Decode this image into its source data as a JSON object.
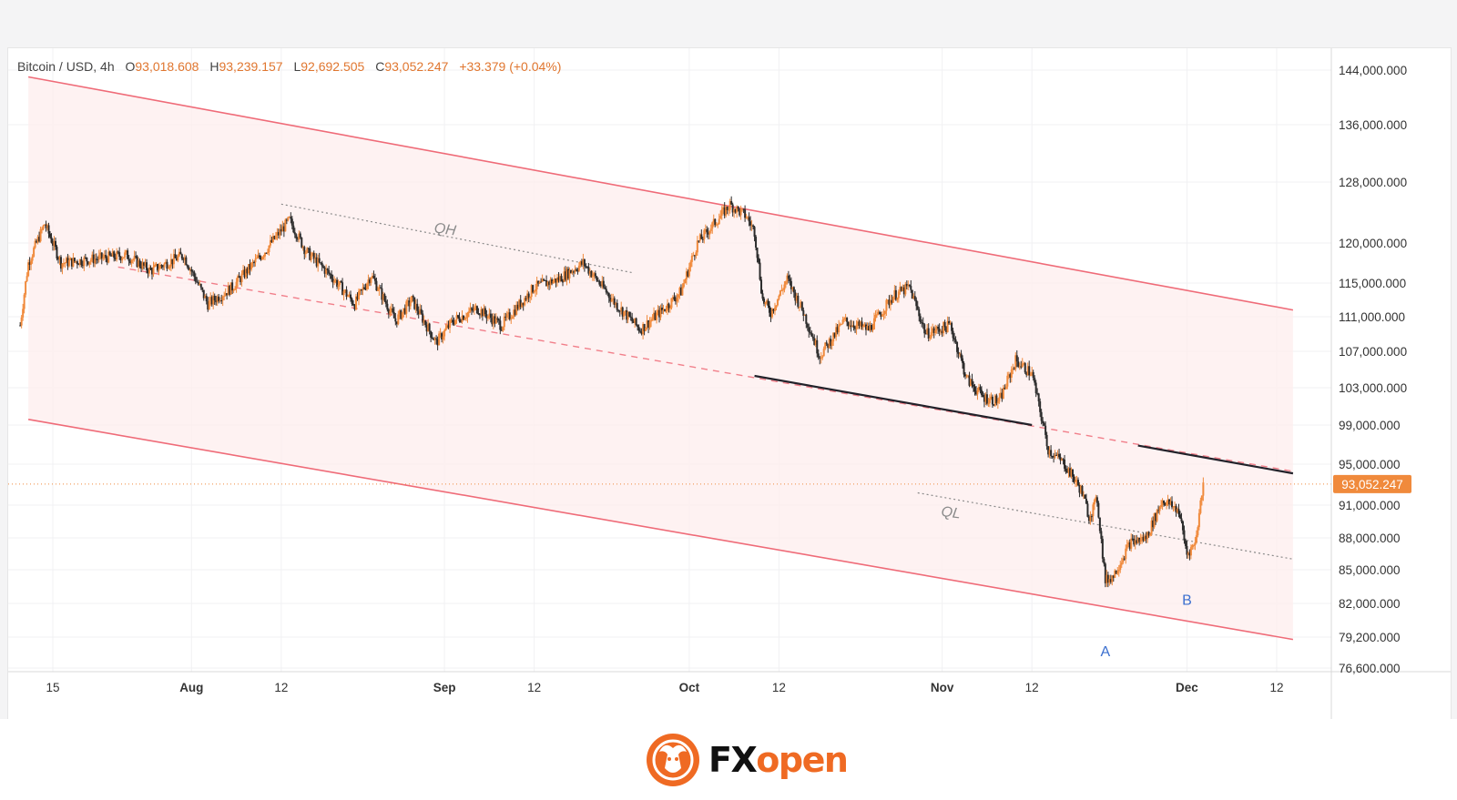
{
  "header": {
    "symbol": "Bitcoin / USD, 4h",
    "open_label": "O",
    "open": "93,018.608",
    "high_label": "H",
    "high": "93,239.157",
    "low_label": "L",
    "low": "92,692.505",
    "close_label": "C",
    "close": "93,052.247",
    "change": "+33.379 (+0.04%)"
  },
  "brand": {
    "fx": "FX",
    "open": "open"
  },
  "colors": {
    "channel_line": "#ef6b78",
    "channel_fill": "#fdeeee",
    "candle_up": "#f08a3c",
    "candle_down": "#2b2b2b",
    "annotation_blue": "#3b6fcf",
    "price_tag": "#f08a3c"
  },
  "chart_data": {
    "type": "candlestick",
    "symbol": "Bitcoin / USD",
    "interval": "4h",
    "current_price": 93052.247,
    "current_price_label": "93,052.247",
    "y_ticks": [
      144000,
      136000,
      128000,
      120000,
      115000,
      111000,
      107000,
      103000,
      99000,
      95000,
      91000,
      88000,
      85000,
      82000,
      79200,
      76600
    ],
    "y_tick_labels": [
      "144,000.000",
      "136,000.000",
      "128,000.000",
      "120,000.000",
      "115,000.000",
      "111,000.000",
      "107,000.000",
      "103,000.000",
      "99,000.000",
      "95,000.000",
      "91,000.000",
      "88,000.000",
      "85,000.000",
      "82,000.000",
      "79,200.000",
      "76,600.000"
    ],
    "x_ticks": [
      {
        "label": "15",
        "date": "2025-07-15"
      },
      {
        "label": "Aug",
        "date": "2025-08-01"
      },
      {
        "label": "12",
        "date": "2025-08-12"
      },
      {
        "label": "Sep",
        "date": "2025-09-01"
      },
      {
        "label": "12",
        "date": "2025-09-12"
      },
      {
        "label": "Oct",
        "date": "2025-10-01"
      },
      {
        "label": "12",
        "date": "2025-10-12"
      },
      {
        "label": "Nov",
        "date": "2025-11-01"
      },
      {
        "label": "12",
        "date": "2025-11-12"
      },
      {
        "label": "Dec",
        "date": "2025-12-01"
      },
      {
        "label": "12",
        "date": "2025-12-12"
      }
    ],
    "price_path": [
      {
        "date": "2025-07-11",
        "price": 110000
      },
      {
        "date": "2025-07-12",
        "price": 117500
      },
      {
        "date": "2025-07-14",
        "price": 122500
      },
      {
        "date": "2025-07-16",
        "price": 117500
      },
      {
        "date": "2025-07-20",
        "price": 118000
      },
      {
        "date": "2025-07-24",
        "price": 118500
      },
      {
        "date": "2025-07-27",
        "price": 116500
      },
      {
        "date": "2025-07-31",
        "price": 118500
      },
      {
        "date": "2025-08-03",
        "price": 112500
      },
      {
        "date": "2025-08-06",
        "price": 114500
      },
      {
        "date": "2025-08-10",
        "price": 119000
      },
      {
        "date": "2025-08-13",
        "price": 123000
      },
      {
        "date": "2025-08-15",
        "price": 119000
      },
      {
        "date": "2025-08-18",
        "price": 116000
      },
      {
        "date": "2025-08-21",
        "price": 112500
      },
      {
        "date": "2025-08-23",
        "price": 116000
      },
      {
        "date": "2025-08-26",
        "price": 110500
      },
      {
        "date": "2025-08-28",
        "price": 113000
      },
      {
        "date": "2025-08-31",
        "price": 108000
      },
      {
        "date": "2025-09-02",
        "price": 110500
      },
      {
        "date": "2025-09-05",
        "price": 112000
      },
      {
        "date": "2025-09-08",
        "price": 110000
      },
      {
        "date": "2025-09-12",
        "price": 114500
      },
      {
        "date": "2025-09-15",
        "price": 115500
      },
      {
        "date": "2025-09-18",
        "price": 117500
      },
      {
        "date": "2025-09-22",
        "price": 112500
      },
      {
        "date": "2025-09-25",
        "price": 109500
      },
      {
        "date": "2025-09-28",
        "price": 112000
      },
      {
        "date": "2025-09-30",
        "price": 114000
      },
      {
        "date": "2025-10-02",
        "price": 120000
      },
      {
        "date": "2025-10-06",
        "price": 125000
      },
      {
        "date": "2025-10-08",
        "price": 123500
      },
      {
        "date": "2025-10-09",
        "price": 121500
      },
      {
        "date": "2025-10-10",
        "price": 113000
      },
      {
        "date": "2025-10-11",
        "price": 111500
      },
      {
        "date": "2025-10-13",
        "price": 115500
      },
      {
        "date": "2025-10-15",
        "price": 111500
      },
      {
        "date": "2025-10-17",
        "price": 106500
      },
      {
        "date": "2025-10-20",
        "price": 110500
      },
      {
        "date": "2025-10-23",
        "price": 109500
      },
      {
        "date": "2025-10-26",
        "price": 113500
      },
      {
        "date": "2025-10-28",
        "price": 114500
      },
      {
        "date": "2025-10-30",
        "price": 109000
      },
      {
        "date": "2025-11-02",
        "price": 110000
      },
      {
        "date": "2025-11-04",
        "price": 104000
      },
      {
        "date": "2025-11-06",
        "price": 102000
      },
      {
        "date": "2025-11-08",
        "price": 101500
      },
      {
        "date": "2025-11-10",
        "price": 106000
      },
      {
        "date": "2025-11-12",
        "price": 104500
      },
      {
        "date": "2025-11-14",
        "price": 96500
      },
      {
        "date": "2025-11-16",
        "price": 95000
      },
      {
        "date": "2025-11-18",
        "price": 92500
      },
      {
        "date": "2025-11-19",
        "price": 90000
      },
      {
        "date": "2025-11-20",
        "price": 91500
      },
      {
        "date": "2025-11-21",
        "price": 84000
      },
      {
        "date": "2025-11-22",
        "price": 84500
      },
      {
        "date": "2025-11-24",
        "price": 87500
      },
      {
        "date": "2025-11-26",
        "price": 88000
      },
      {
        "date": "2025-11-28",
        "price": 91500
      },
      {
        "date": "2025-11-30",
        "price": 90500
      },
      {
        "date": "2025-12-01",
        "price": 86500
      },
      {
        "date": "2025-12-02",
        "price": 87500
      },
      {
        "date": "2025-12-03",
        "price": 93052
      }
    ],
    "channel": {
      "upper": [
        {
          "date": "2025-07-12",
          "price": 143000
        },
        {
          "date": "2025-12-14",
          "price": 111800
        }
      ],
      "lower": [
        {
          "date": "2025-07-12",
          "price": 99600
        },
        {
          "date": "2025-12-14",
          "price": 79000
        }
      ],
      "median": [
        {
          "date": "2025-07-23",
          "price": 117000
        },
        {
          "date": "2025-12-14",
          "price": 94300
        }
      ]
    },
    "lines": [
      {
        "name": "QH",
        "style": "dotted",
        "from": {
          "date": "2025-08-12",
          "price": 125100
        },
        "to": {
          "date": "2025-09-24",
          "price": 116300
        }
      },
      {
        "name": "QL",
        "style": "dotted",
        "from": {
          "date": "2025-10-29",
          "price": 92200
        },
        "to": {
          "date": "2025-12-14",
          "price": 86000
        }
      },
      {
        "name": "",
        "style": "solid",
        "from": {
          "date": "2025-10-09",
          "price": 104300
        },
        "to": {
          "date": "2025-11-12",
          "price": 99000
        }
      },
      {
        "name": "",
        "style": "solid",
        "from": {
          "date": "2025-11-25",
          "price": 96900
        },
        "to": {
          "date": "2025-12-14",
          "price": 94100
        }
      }
    ],
    "annotations": [
      {
        "text": "QH",
        "date": "2025-09-01",
        "price": 121200
      },
      {
        "text": "QL",
        "date": "2025-11-02",
        "price": 89900
      },
      {
        "text": "A",
        "date": "2025-11-21",
        "price": 77600
      },
      {
        "text": "B",
        "date": "2025-12-01",
        "price": 81900
      }
    ]
  }
}
